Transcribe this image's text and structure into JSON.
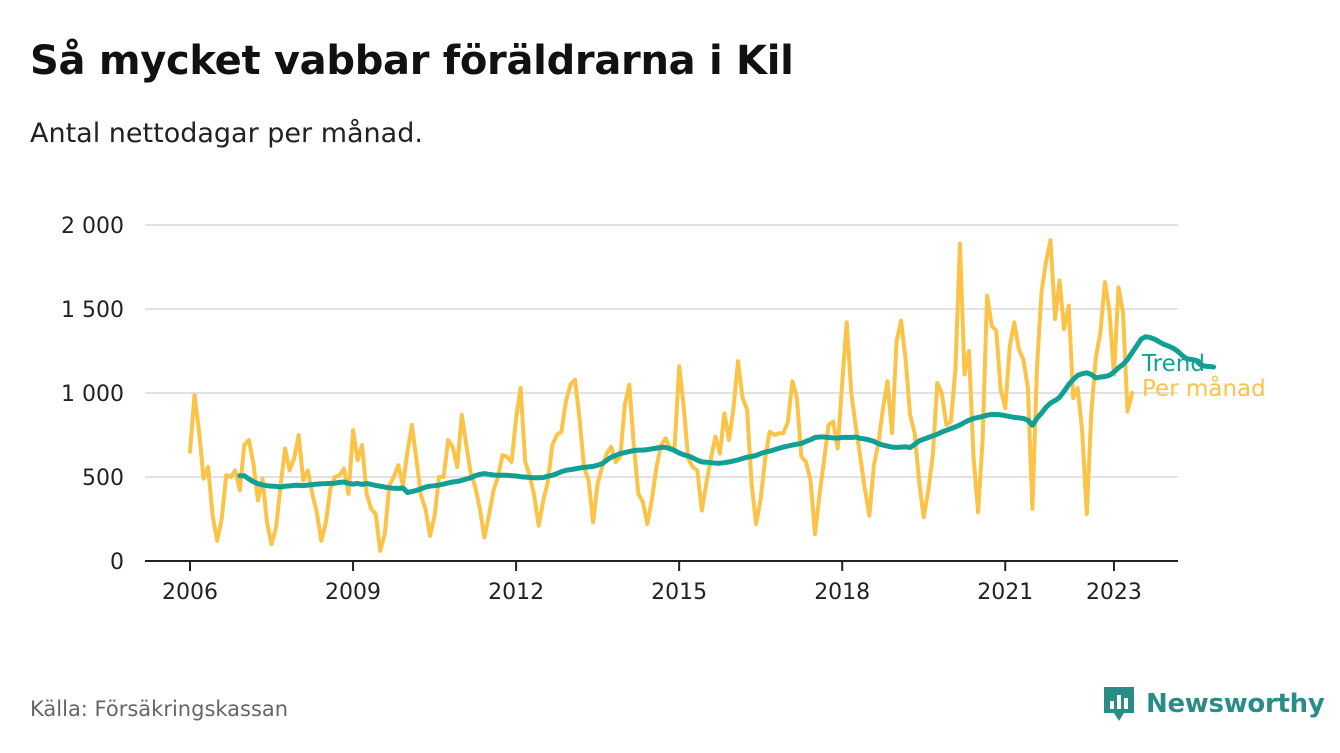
{
  "title": "Så mycket vabbar föräldrarna i Kil",
  "subtitle": "Antal nettodagar per månad.",
  "source": "Källa: Försäkringskassan",
  "brand": {
    "name": "Newsworthy",
    "icon": "newsworthy-logo-icon"
  },
  "colors": {
    "monthly": "#fbc347",
    "trend": "#11a093",
    "brand": "#2a8c86",
    "grid": "#d9d9d9",
    "axis": "#222222"
  },
  "chart_data": {
    "type": "line",
    "start": "2006-01",
    "yticks": [
      {
        "value": 0,
        "label": "0"
      },
      {
        "value": 500,
        "label": "500"
      },
      {
        "value": 1000,
        "label": "1 000"
      },
      {
        "value": 1500,
        "label": "1 500"
      },
      {
        "value": 2000,
        "label": "2 000"
      }
    ],
    "xticks": [
      "2006",
      "2009",
      "2012",
      "2015",
      "2018",
      "2021",
      "2023"
    ],
    "ylim": [
      0,
      2000
    ],
    "grid": true,
    "series": [
      {
        "name": "Per månad",
        "color": "#fbc347",
        "values": [
          650,
          990,
          770,
          490,
          560,
          270,
          120,
          250,
          510,
          500,
          540,
          420,
          690,
          720,
          580,
          360,
          490,
          230,
          100,
          200,
          450,
          670,
          540,
          610,
          750,
          480,
          540,
          400,
          290,
          120,
          230,
          430,
          500,
          510,
          550,
          400,
          780,
          600,
          690,
          400,
          310,
          280,
          60,
          160,
          450,
          500,
          570,
          450,
          650,
          810,
          600,
          390,
          310,
          150,
          270,
          500,
          500,
          720,
          680,
          560,
          870,
          690,
          520,
          440,
          310,
          140,
          270,
          420,
          500,
          630,
          620,
          590,
          850,
          1030,
          590,
          510,
          390,
          210,
          360,
          470,
          690,
          750,
          770,
          950,
          1050,
          1080,
          850,
          560,
          480,
          230,
          460,
          560,
          640,
          680,
          590,
          620,
          930,
          1050,
          680,
          400,
          350,
          220,
          370,
          560,
          690,
          730,
          670,
          680,
          1160,
          920,
          610,
          560,
          540,
          300,
          460,
          610,
          740,
          640,
          880,
          720,
          910,
          1190,
          970,
          900,
          460,
          220,
          370,
          610,
          770,
          750,
          760,
          760,
          830,
          1070,
          970,
          620,
          590,
          480,
          160,
          400,
          600,
          810,
          830,
          670,
          1060,
          1420,
          1000,
          800,
          620,
          430,
          270,
          570,
          700,
          910,
          1070,
          760,
          1310,
          1430,
          1200,
          870,
          760,
          470,
          260,
          420,
          630,
          1060,
          1000,
          810,
          830,
          1140,
          1890,
          1110,
          1250,
          620,
          290,
          720,
          1580,
          1400,
          1370,
          1020,
          910,
          1280,
          1420,
          1260,
          1200,
          1030,
          310,
          1150,
          1600,
          1780,
          1910,
          1440,
          1670,
          1380,
          1520,
          970,
          1030,
          770,
          280,
          880,
          1210,
          1360,
          1660,
          1490,
          1110,
          1630,
          1480,
          890,
          1000
        ]
      },
      {
        "name": "Trend",
        "color": "#11a093",
        "values": [
          null,
          null,
          null,
          null,
          null,
          null,
          null,
          null,
          null,
          null,
          null,
          508,
          508,
          488,
          472,
          460,
          453,
          448,
          446,
          444,
          440,
          445,
          447,
          450,
          451,
          449,
          452,
          455,
          458,
          460,
          461,
          462,
          463,
          468,
          470,
          462,
          458,
          462,
          456,
          462,
          456,
          450,
          445,
          440,
          436,
          433,
          432,
          435,
          408,
          413,
          420,
          430,
          440,
          445,
          448,
          452,
          458,
          465,
          470,
          474,
          480,
          488,
          495,
          508,
          516,
          520,
          516,
          512,
          510,
          510,
          510,
          508,
          506,
          502,
          500,
          497,
          495,
          495,
          497,
          505,
          510,
          520,
          532,
          540,
          544,
          548,
          553,
          557,
          560,
          563,
          570,
          580,
          600,
          618,
          628,
          640,
          645,
          652,
          657,
          660,
          660,
          663,
          668,
          672,
          676,
          676,
          668,
          658,
          643,
          632,
          625,
          614,
          600,
          590,
          588,
          585,
          583,
          582,
          585,
          590,
          595,
          602,
          610,
          618,
          622,
          628,
          640,
          648,
          654,
          662,
          670,
          678,
          684,
          690,
          695,
          700,
          712,
          722,
          735,
          738,
          738,
          735,
          733,
          732,
          735,
          737,
          735,
          738,
          730,
          726,
          720,
          712,
          698,
          690,
          684,
          678,
          676,
          678,
          680,
          675,
          695,
          715,
          725,
          735,
          745,
          755,
          768,
          778,
          788,
          798,
          810,
          825,
          838,
          848,
          855,
          860,
          868,
          872,
          872,
          870,
          865,
          860,
          855,
          852,
          848,
          838,
          808,
          850,
          880,
          915,
          940,
          955,
          975,
          1010,
          1050,
          1080,
          1105,
          1115,
          1120,
          1110,
          1090,
          1095,
          1098,
          1105,
          1125,
          1150,
          1170,
          1200,
          1240,
          1280,
          1320,
          1335,
          1330,
          1320,
          1305,
          1290,
          1280,
          1268,
          1250,
          1225,
          1205,
          1200,
          1195,
          1170,
          1160,
          1158,
          1155
        ]
      }
    ],
    "annotations": [
      {
        "series": "Trend",
        "text": "Trend"
      },
      {
        "series": "Per månad",
        "text": "Per månad"
      }
    ]
  }
}
